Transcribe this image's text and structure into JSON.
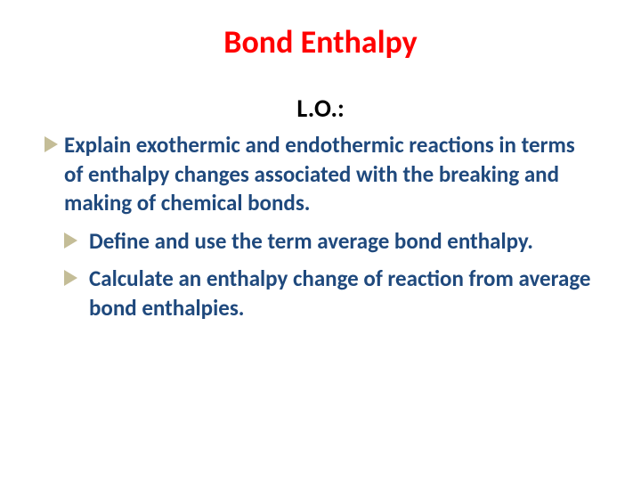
{
  "slide": {
    "title": "Bond Enthalpy",
    "title_color": "#ff0000",
    "title_fontsize": 36,
    "subtitle": "L.O.:",
    "subtitle_color": "#000000",
    "subtitle_fontsize": 28,
    "body_color": "#1f497d",
    "body_fontsize": 25,
    "bullet_color": "#c4bd97",
    "background_color": "#ffffff",
    "bullets": [
      {
        "text": "Explain exothermic and endothermic reactions in terms of enthalpy changes associated with the breaking and making of chemical bonds.",
        "indent": "flush"
      },
      {
        "text": " Define and use the term average bond enthalpy.",
        "indent": "indented"
      },
      {
        "text": " Calculate an enthalpy change of reaction from average bond enthalpies.",
        "indent": "indented"
      }
    ]
  }
}
